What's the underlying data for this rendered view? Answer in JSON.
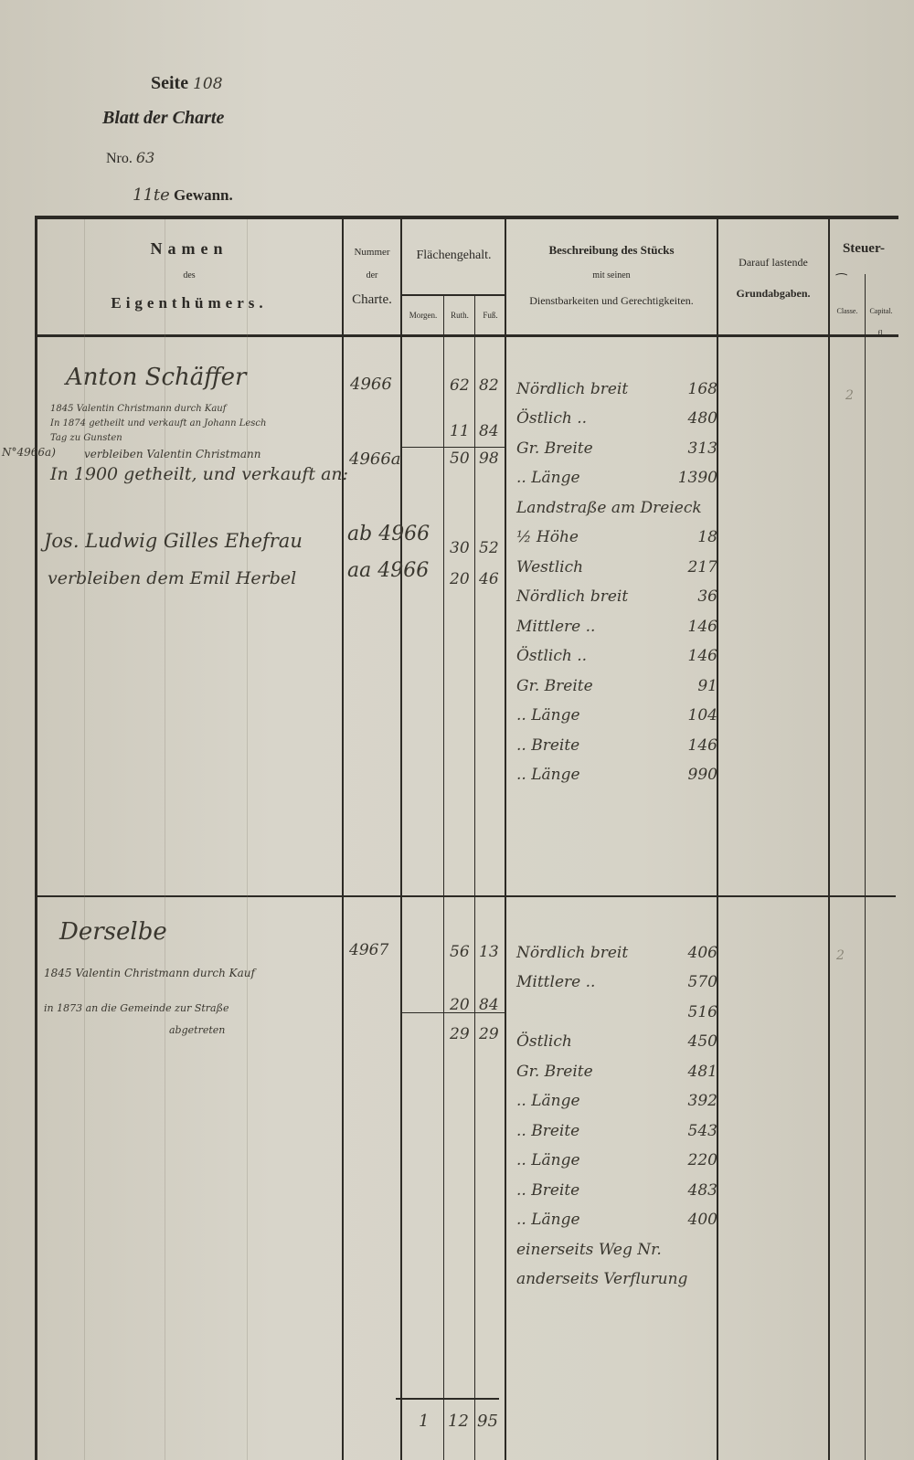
{
  "header": {
    "seite_label": "Seite",
    "seite_value": "108",
    "blatt_label": "Blatt der Charte",
    "nro_label": "Nro.",
    "nro_value": "63",
    "gewann_number": "11te",
    "gewann_label": "Gewann."
  },
  "columns": {
    "namen_1": "Namen",
    "namen_2": "des",
    "namen_3": "Eigenthümers.",
    "nummer_1": "Nummer",
    "nummer_2": "der",
    "nummer_3": "Charte.",
    "flaeche": "Flächengehalt.",
    "morgen": "Morgen.",
    "ruthen": "Ruth.",
    "fuss": "Fuß.",
    "beschr_1": "Beschreibung des Stücks",
    "beschr_2": "mit seinen",
    "beschr_3": "Dienstbarkeiten und Gerechtigkeiten.",
    "grund_1": "Darauf lastende",
    "grund_2": "Grundabgaben.",
    "steuer": "Steuer-",
    "classe": "Classe.",
    "capital": "Capital.",
    "capital_unit": "fl."
  },
  "entry1": {
    "name": "Anton Schäffer",
    "notes": [
      "1845 Valentin Christmann durch Kauf",
      "In 1874 getheilt und verkauft an Johann Lesch",
      "Tag zu Gunsten"
    ],
    "margin_ref": "N°4966a)",
    "notes2": [
      "verbleiben Valentin Christmann",
      "In 1900 getheilt, und verkauft an:"
    ],
    "owner2": "Jos. Ludwig Gilles Ehefrau",
    "owner3": "verbleiben dem Emil Herbel",
    "charte": [
      "4966",
      "4966a",
      "ab 4966",
      "aa 4966"
    ],
    "area": [
      {
        "ruthen": "62",
        "fuss": "82"
      },
      {
        "ruthen": "11",
        "fuss": "84"
      },
      {
        "ruthen": "50",
        "fuss": "98"
      },
      {
        "ruthen": "30",
        "fuss": "52"
      },
      {
        "ruthen": "20",
        "fuss": "46"
      }
    ],
    "classe": "2",
    "description": [
      {
        "text": "Nördlich breit",
        "value": "168"
      },
      {
        "text": "Östlich ..",
        "value": "480"
      },
      {
        "text": "Gr. Breite",
        "value": "313"
      },
      {
        "text": ".. Länge",
        "value": "1390"
      },
      {
        "text": "Landstraße am Dreieck",
        "value": ""
      },
      {
        "text": "½ Höhe",
        "value": "18"
      },
      {
        "text": "Westlich",
        "value": "217"
      },
      {
        "text": "Nördlich breit",
        "value": "36"
      },
      {
        "text": "Mittlere ..",
        "value": "146"
      },
      {
        "text": "Östlich ..",
        "value": "146"
      },
      {
        "text": "Gr. Breite",
        "value": "91"
      },
      {
        "text": ".. Länge",
        "value": "104"
      },
      {
        "text": ".. Breite",
        "value": "146"
      },
      {
        "text": ".. Länge",
        "value": "990"
      }
    ]
  },
  "entry2": {
    "name": "Derselbe",
    "notes": [
      "1845 Valentin Christmann durch Kauf",
      "in 1873 an die Gemeinde zur Straße",
      "abgetreten"
    ],
    "charte": "4967",
    "area": [
      {
        "ruthen": "56",
        "fuss": "13"
      },
      {
        "ruthen": "20",
        "fuss": "84"
      },
      {
        "ruthen": "29",
        "fuss": "29"
      }
    ],
    "classe": "2",
    "description": [
      {
        "text": "Nördlich breit",
        "value": "406"
      },
      {
        "text": "Mittlere ..",
        "value": "570"
      },
      {
        "text": "",
        "value": "516"
      },
      {
        "text": "Östlich",
        "value": "450"
      },
      {
        "text": "Gr. Breite",
        "value": "481"
      },
      {
        "text": ".. Länge",
        "value": "392"
      },
      {
        "text": ".. Breite",
        "value": "543"
      },
      {
        "text": ".. Länge",
        "value": "220"
      },
      {
        "text": ".. Breite",
        "value": "483"
      },
      {
        "text": ".. Länge",
        "value": "400"
      },
      {
        "text": "einerseits Weg Nr.",
        "value": ""
      },
      {
        "text": "anderseits Verflurung",
        "value": ""
      }
    ]
  },
  "total": {
    "morgen": "1",
    "ruthen": "12",
    "fuss": "95"
  }
}
